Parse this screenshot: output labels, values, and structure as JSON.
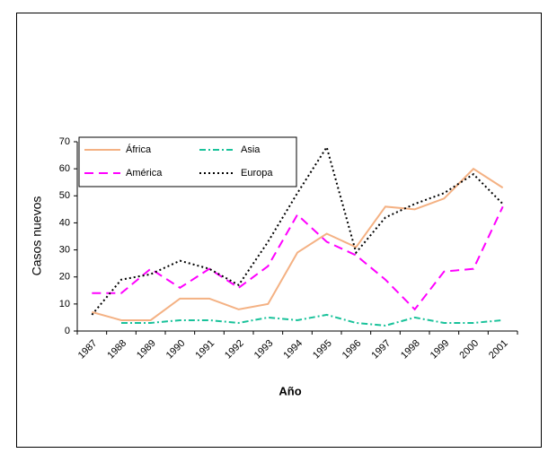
{
  "chart_data": {
    "type": "line",
    "x_label": "Año",
    "y_label": "Casos nuevos",
    "categories": [
      "1987",
      "1988",
      "1989",
      "1990",
      "1991",
      "1992",
      "1993",
      "1994",
      "1995",
      "1996",
      "1997",
      "1998",
      "1999",
      "2000",
      "2001"
    ],
    "series": [
      {
        "name": "África",
        "color": "#f4b183",
        "dash": "solid",
        "values": [
          7,
          4,
          4,
          12,
          12,
          8,
          10,
          29,
          36,
          31,
          46,
          45,
          49,
          60,
          53
        ]
      },
      {
        "name": "Asia",
        "color": "#19c29a",
        "dash": "dashdot",
        "values": [
          null,
          3,
          3,
          4,
          4,
          3,
          5,
          4,
          6,
          3,
          2,
          5,
          3,
          3,
          4
        ]
      },
      {
        "name": "América",
        "color": "#ff00ff",
        "dash": "dashed",
        "values": [
          14,
          14,
          23,
          16,
          23,
          16,
          24,
          43,
          33,
          28,
          19,
          8,
          22,
          23,
          46
        ]
      },
      {
        "name": "Europa",
        "color": "#000000",
        "dash": "dotted",
        "values": [
          6,
          19,
          21,
          26,
          23,
          17,
          33,
          51,
          68,
          29,
          42,
          47,
          51,
          58,
          47
        ]
      }
    ],
    "ylim": [
      0,
      70
    ],
    "yticks": [
      0,
      10,
      20,
      30,
      40,
      50,
      60,
      70
    ],
    "grid": false,
    "legend": "upper left"
  }
}
